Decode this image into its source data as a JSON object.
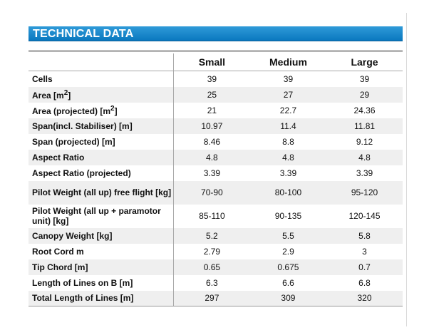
{
  "title": "TECHNICAL DATA",
  "columns": [
    "Small",
    "Medium",
    "Large"
  ],
  "rows": [
    {
      "label": "Cells",
      "values": [
        "39",
        "39",
        "39"
      ]
    },
    {
      "label": "Area [m",
      "sup": "2",
      "label_end": "]",
      "values": [
        "25",
        "27",
        "29"
      ]
    },
    {
      "label": "Area (projected) [m",
      "sup": "2",
      "label_end": "]",
      "values": [
        "21",
        "22.7",
        "24.36"
      ]
    },
    {
      "label": "Span(incl. Stabiliser) [m]",
      "values": [
        "10.97",
        "11.4",
        "11.81"
      ]
    },
    {
      "label": "Span (projected) [m]",
      "values": [
        "8.46",
        "8.8",
        "9.12"
      ]
    },
    {
      "label": "Aspect Ratio",
      "values": [
        "4.8",
        "4.8",
        "4.8"
      ]
    },
    {
      "label": "Aspect Ratio (projected)",
      "values": [
        "3.39",
        "3.39",
        "3.39"
      ]
    },
    {
      "label": "Pilot Weight (all up) free flight [kg]",
      "values": [
        "70-90",
        "80-100",
        "95-120"
      ]
    },
    {
      "label": "Pilot Weight (all up + paramotor unit) [kg]",
      "values": [
        "85-110",
        "90-135",
        "120-145"
      ]
    },
    {
      "label": "Canopy Weight [kg]",
      "values": [
        "5.2",
        "5.5",
        "5.8"
      ]
    },
    {
      "label": "Root Cord m",
      "values": [
        "2.79",
        "2.9",
        "3"
      ]
    },
    {
      "label": "Tip Chord [m]",
      "values": [
        "0.65",
        "0.675",
        "0.7"
      ]
    },
    {
      "label": "Length of Lines on B [m]",
      "values": [
        "6.3",
        "6.6",
        "6.8"
      ]
    },
    {
      "label": "Total Length of Lines [m]",
      "values": [
        "297",
        "309",
        "320"
      ]
    }
  ]
}
